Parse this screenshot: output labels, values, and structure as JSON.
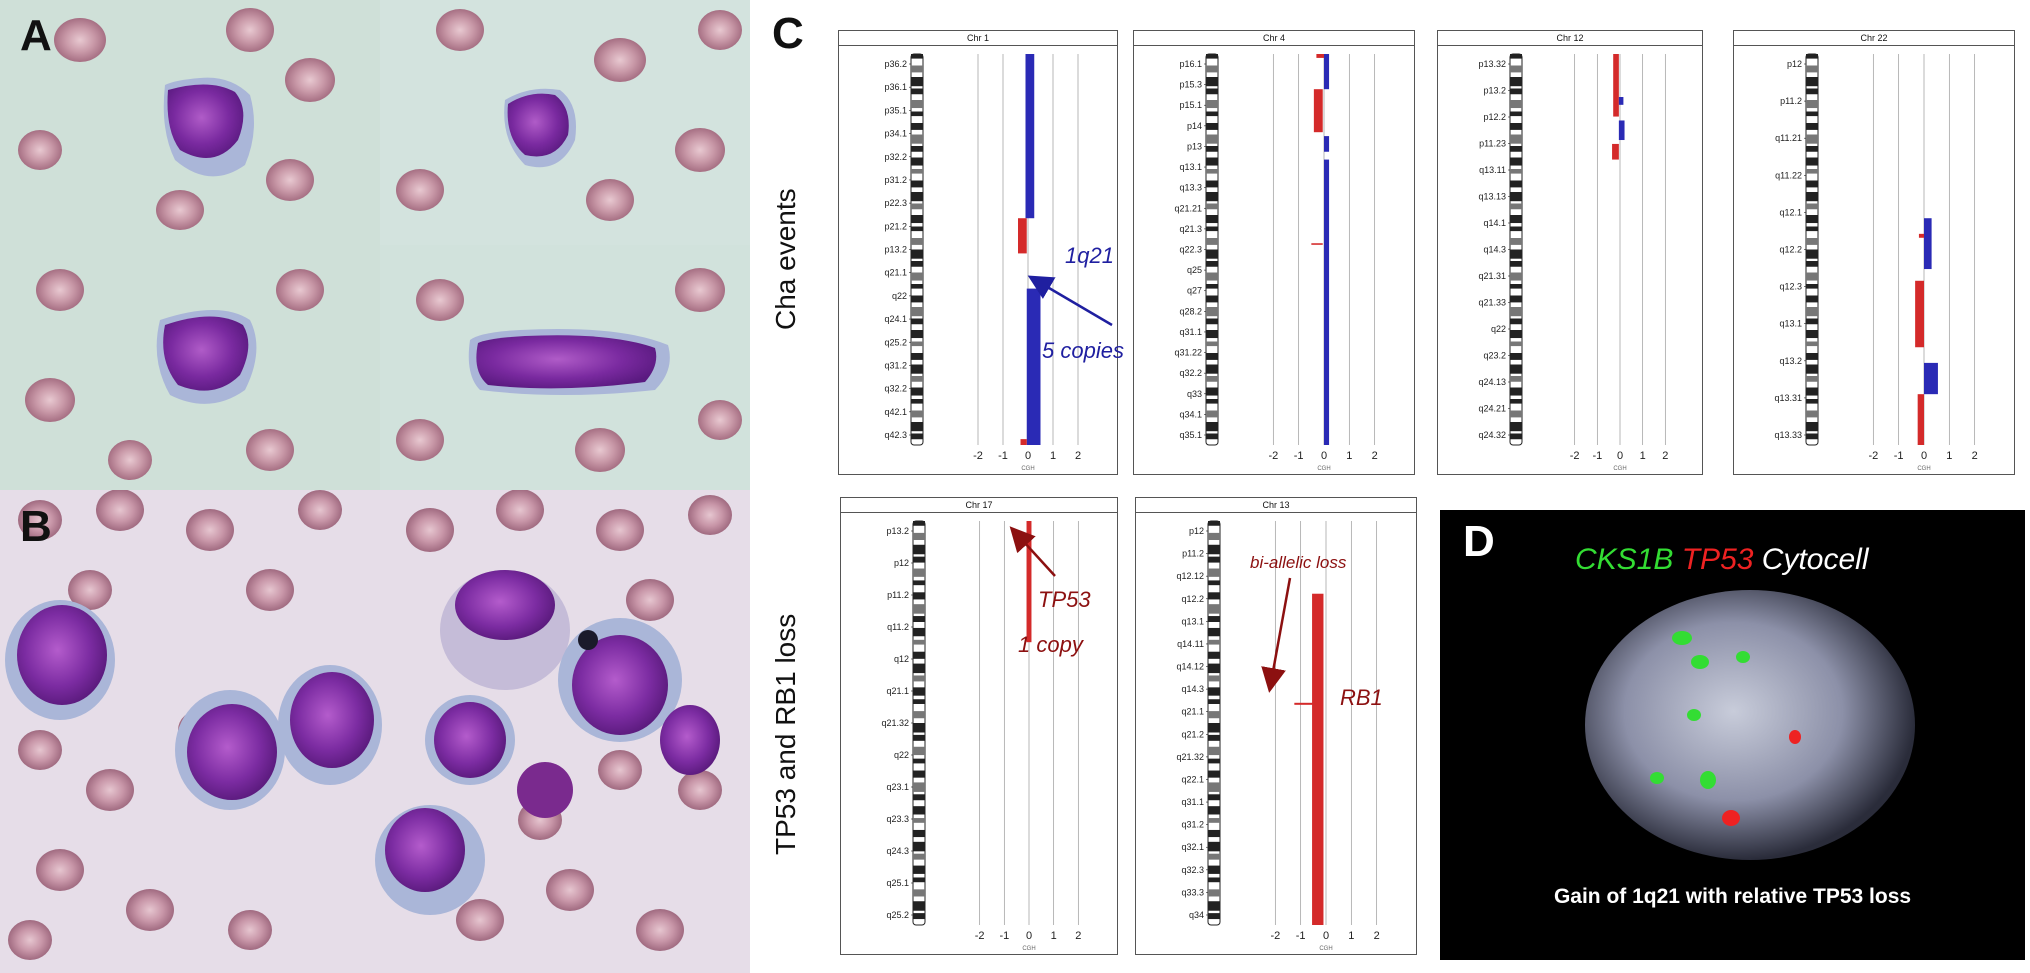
{
  "panels": {
    "a": {
      "letter": "A"
    },
    "b": {
      "letter": "B"
    },
    "c": {
      "letter": "C"
    },
    "d": {
      "letter": "D"
    }
  },
  "row_labels": {
    "top": "Cha events",
    "bottom": "TP53 and RB1  loss"
  },
  "chromosomes": [
    {
      "id": "chr1",
      "title": "Chr 1",
      "bands": [
        "p36.2",
        "p36.1",
        "p35.1",
        "p34.1",
        "p32.2",
        "p31.2",
        "p22.3",
        "p21.2",
        "p13.2",
        "q21.1",
        "q22",
        "q24.1",
        "q25.2",
        "q31.2",
        "q32.2",
        "q42.1",
        "q42.3"
      ]
    },
    {
      "id": "chr4",
      "title": "Chr 4",
      "bands": [
        "p16.1",
        "p15.3",
        "p15.1",
        "p14",
        "p13",
        "q13.1",
        "q13.3",
        "q21.21",
        "q21.3",
        "q22.3",
        "q25",
        "q27",
        "q28.2",
        "q31.1",
        "q31.22",
        "q32.2",
        "q33",
        "q34.1",
        "q35.1"
      ]
    },
    {
      "id": "chr12",
      "title": "Chr 12",
      "bands": [
        "p13.32",
        "p13.2",
        "p12.2",
        "p11.23",
        "q13.11",
        "q13.13",
        "q14.1",
        "q14.3",
        "q21.31",
        "q21.33",
        "q22",
        "q23.2",
        "q24.13",
        "q24.21",
        "q24.32"
      ]
    },
    {
      "id": "chr22",
      "title": "Chr 22",
      "bands": [
        "p12",
        "p11.2",
        "q11.21",
        "q11.22",
        "q12.1",
        "q12.2",
        "q12.3",
        "q13.1",
        "q13.2",
        "q13.31",
        "q13.33"
      ]
    },
    {
      "id": "chr17",
      "title": "Chr 17",
      "bands": [
        "p13.2",
        "p12",
        "p11.2",
        "q11.2",
        "q12",
        "q21.1",
        "q21.32",
        "q22",
        "q23.1",
        "q23.3",
        "q24.3",
        "q25.1",
        "q25.2"
      ]
    },
    {
      "id": "chr13",
      "title": "Chr 13",
      "bands": [
        "p12",
        "p11.2",
        "q12.12",
        "q12.2",
        "q13.1",
        "q14.11",
        "q14.12",
        "q14.3",
        "q21.1",
        "q21.2",
        "q21.32",
        "q22.1",
        "q31.1",
        "q31.2",
        "q32.1",
        "q32.3",
        "q33.3",
        "q34"
      ]
    }
  ],
  "axis": {
    "ticks": [
      "-2",
      "-1",
      "0",
      "1",
      "2"
    ],
    "xlabel": "CGH"
  },
  "annotations": {
    "chr1_band": "1q21",
    "chr1_copies": "5 copies",
    "chr17_gene": "TP53",
    "chr17_copies": "1 copy",
    "chr13_loss": "bi-allelic loss",
    "chr13_gene": "RB1"
  },
  "fish": {
    "probe1": "CKS1B",
    "probe2": "TP53",
    "probe3": "Cytocell",
    "caption": "Gain of 1q21 with relative TP53 loss"
  },
  "colors": {
    "gain": "#2a2ab5",
    "loss": "#d42a2a",
    "annot_blue": "#1f1fa0",
    "annot_red": "#8c1010",
    "fish_green": "#33dd33",
    "fish_red": "#ee2222"
  }
}
